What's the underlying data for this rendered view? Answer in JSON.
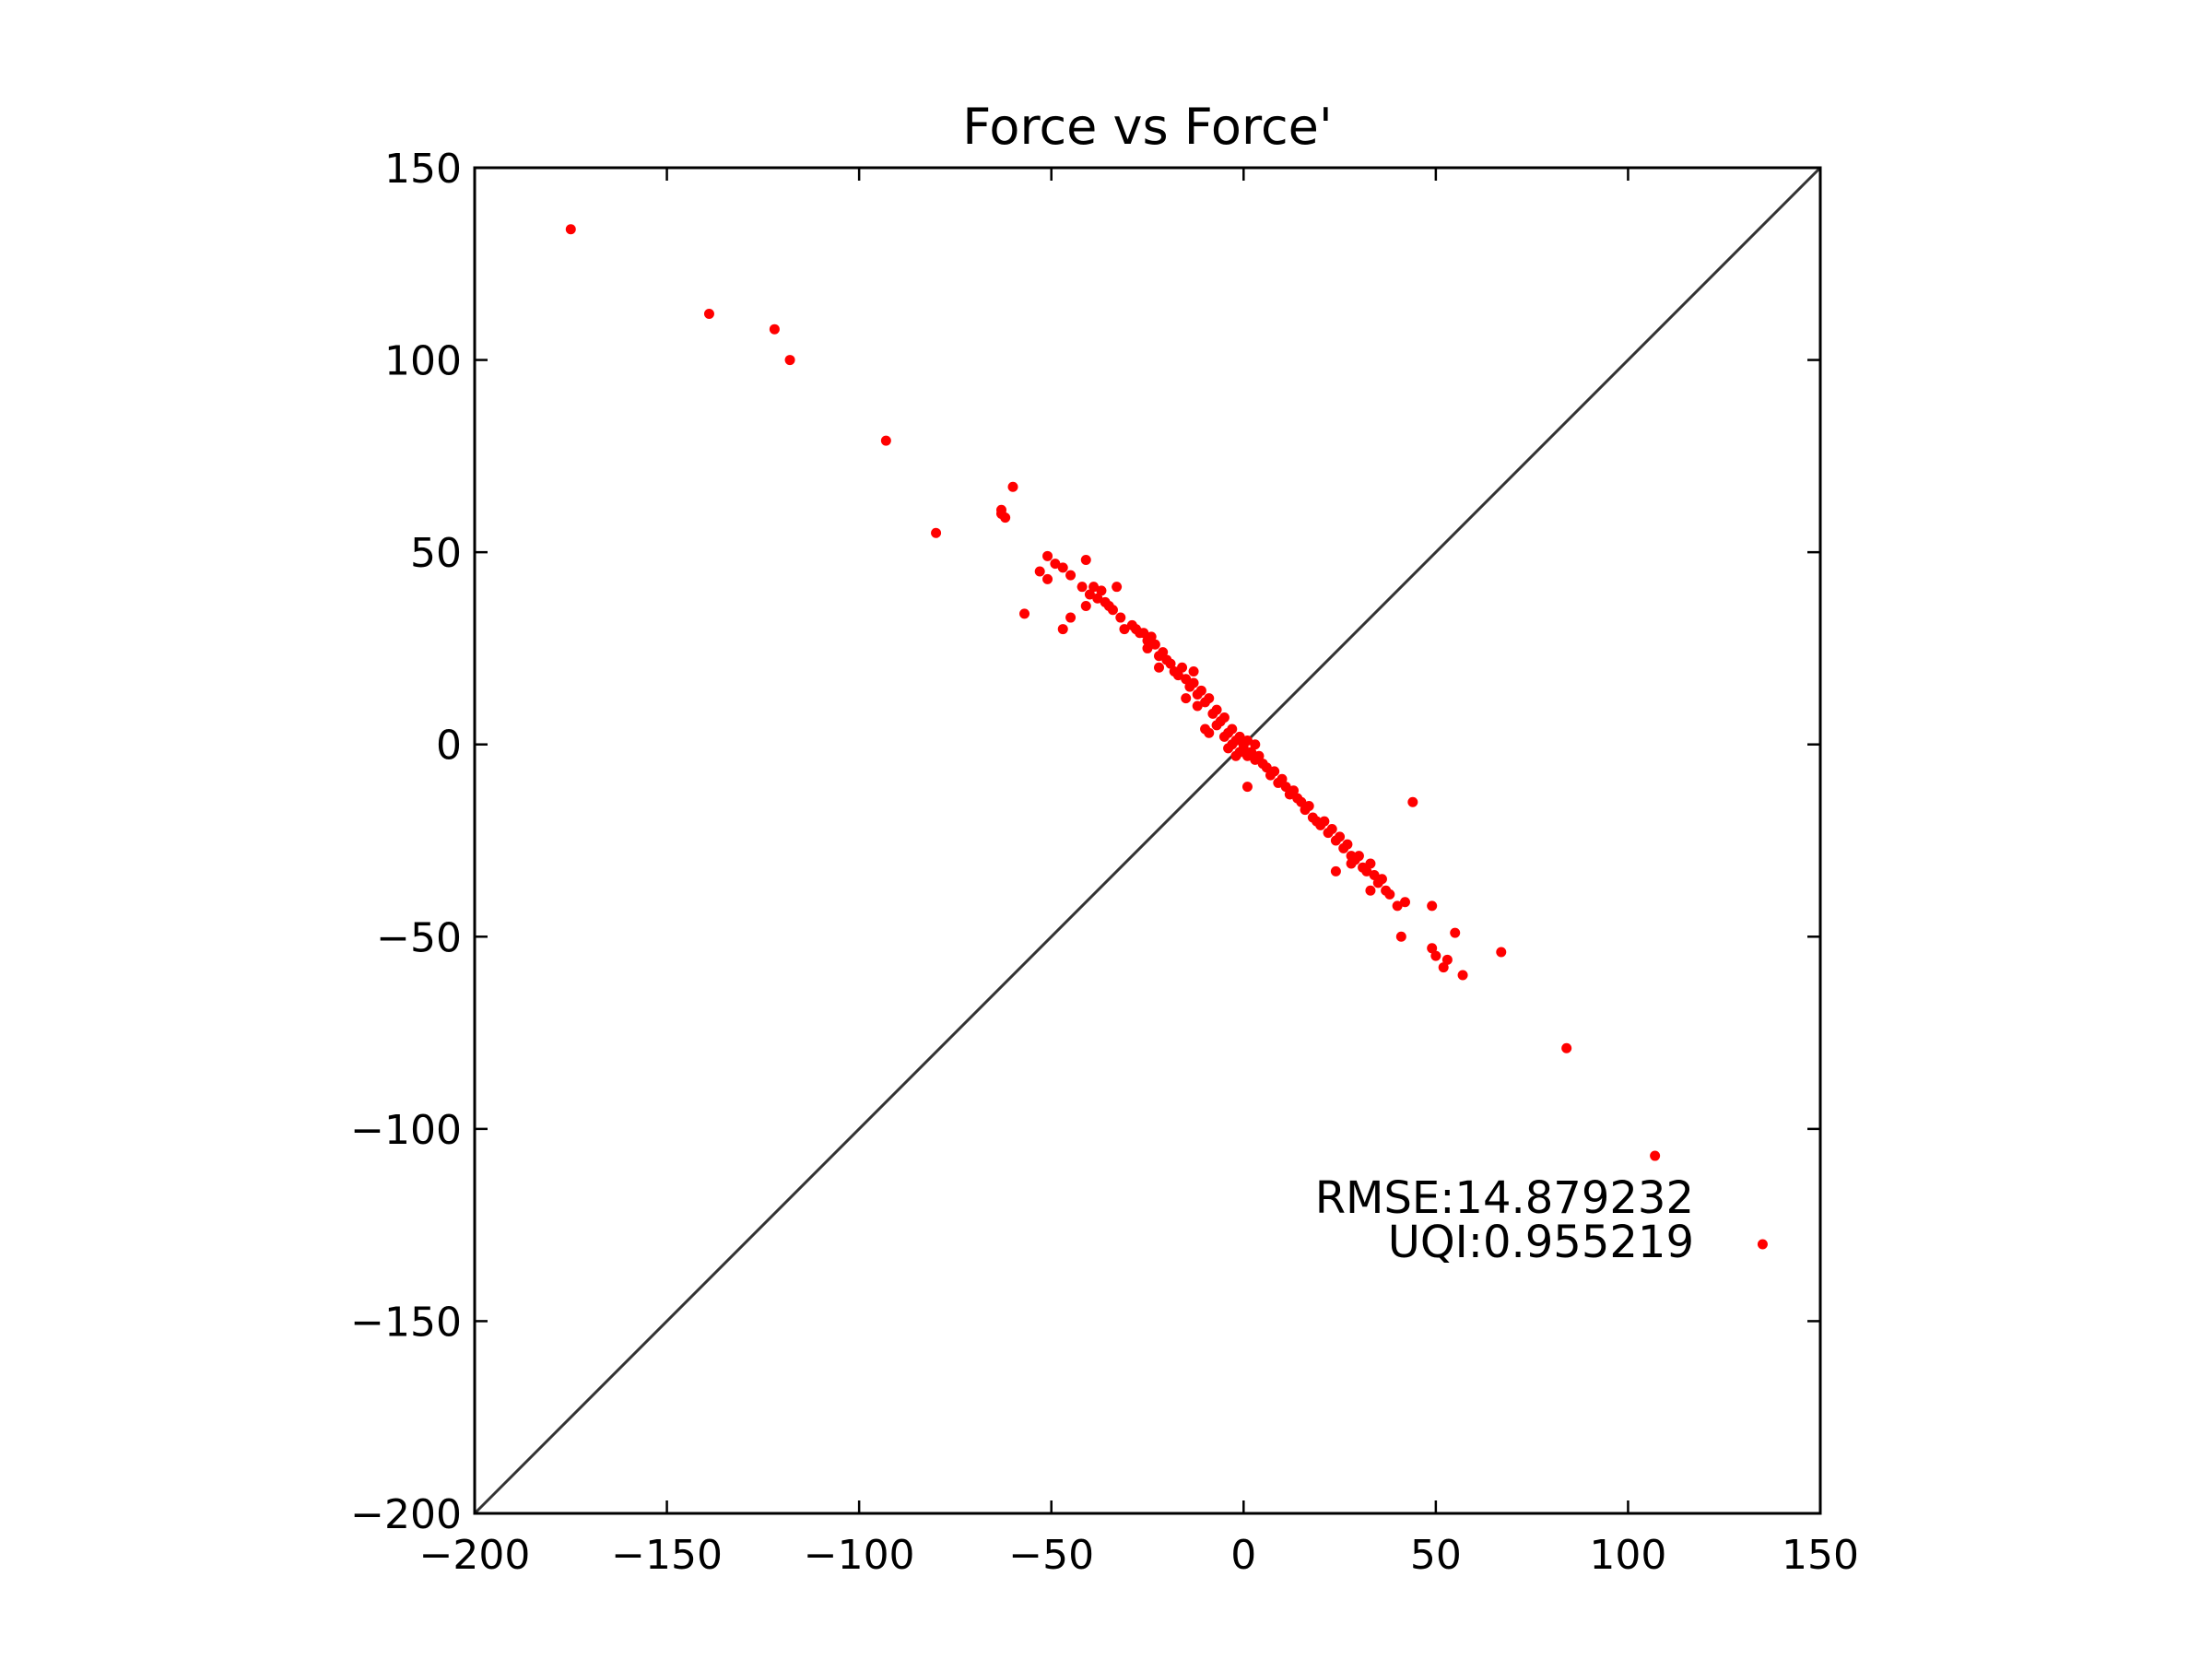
{
  "chart_data": {
    "type": "scatter",
    "title": "Force vs Force'",
    "xlabel": "",
    "ylabel": "",
    "xlim": [
      -200,
      150
    ],
    "ylim": [
      -200,
      150
    ],
    "xticks": [
      -200,
      -150,
      -100,
      -50,
      0,
      50,
      100,
      150
    ],
    "yticks": [
      -200,
      -150,
      -100,
      -50,
      0,
      50,
      100,
      150
    ],
    "xtick_labels": [
      "−200",
      "−150",
      "−100",
      "−50",
      "0",
      "50",
      "100",
      "150"
    ],
    "ytick_labels": [
      "−200",
      "−150",
      "−100",
      "−50",
      "0",
      "50",
      "100",
      "150"
    ],
    "grid": false,
    "reference_line": {
      "from": [
        -200,
        -200
      ],
      "to": [
        150,
        150
      ],
      "color": "#333333"
    },
    "annotations": [
      "RMSE:14.879232",
      "UQI:0.955219"
    ],
    "point_color": "#ff0000",
    "series": [
      {
        "values": [
          [
            -175,
            134
          ],
          [
            -139,
            112
          ],
          [
            -122,
            108
          ],
          [
            -118,
            100
          ],
          [
            -93,
            79
          ],
          [
            -80,
            55
          ],
          [
            -60,
            67
          ],
          [
            -63,
            60
          ],
          [
            -63,
            61
          ],
          [
            -62,
            59
          ],
          [
            -57,
            34
          ],
          [
            -53,
            45
          ],
          [
            -51,
            49
          ],
          [
            -51,
            43
          ],
          [
            -49,
            47
          ],
          [
            -47,
            30
          ],
          [
            -47,
            46
          ],
          [
            -45,
            33
          ],
          [
            -45,
            44
          ],
          [
            -42,
            41
          ],
          [
            -41,
            48
          ],
          [
            -41,
            36
          ],
          [
            -40,
            39
          ],
          [
            -39,
            41
          ],
          [
            -38,
            38
          ],
          [
            -37,
            40
          ],
          [
            -36,
            37
          ],
          [
            -35,
            36
          ],
          [
            -34,
            35
          ],
          [
            -33,
            41
          ],
          [
            -32,
            33
          ],
          [
            -31,
            30
          ],
          [
            -29,
            31
          ],
          [
            -28,
            30
          ],
          [
            -27,
            29
          ],
          [
            -26,
            29
          ],
          [
            -25,
            27
          ],
          [
            -25,
            25
          ],
          [
            -24,
            28
          ],
          [
            -23,
            26
          ],
          [
            -22,
            23
          ],
          [
            -22,
            20
          ],
          [
            -21,
            24
          ],
          [
            -20,
            22
          ],
          [
            -19,
            21
          ],
          [
            -18,
            19
          ],
          [
            -17,
            18
          ],
          [
            -16,
            20
          ],
          [
            -15,
            17
          ],
          [
            -15,
            12
          ],
          [
            -14,
            15
          ],
          [
            -13,
            16
          ],
          [
            -13,
            19
          ],
          [
            -12,
            13
          ],
          [
            -12,
            10
          ],
          [
            -11,
            14
          ],
          [
            -10,
            11
          ],
          [
            -10,
            4
          ],
          [
            -9,
            12
          ],
          [
            -9,
            3
          ],
          [
            -8,
            8
          ],
          [
            -7,
            9
          ],
          [
            -7,
            5
          ],
          [
            -6,
            6
          ],
          [
            -5,
            7
          ],
          [
            -5,
            2
          ],
          [
            -4,
            3
          ],
          [
            -4,
            -1
          ],
          [
            -3,
            4
          ],
          [
            -3,
            0
          ],
          [
            -2,
            1
          ],
          [
            -2,
            -3
          ],
          [
            -1,
            2
          ],
          [
            -1,
            -2
          ],
          [
            0,
            0
          ],
          [
            0,
            -1
          ],
          [
            1,
            1
          ],
          [
            1,
            -3
          ],
          [
            1,
            -11
          ],
          [
            2,
            -2
          ],
          [
            3,
            -4
          ],
          [
            3,
            0
          ],
          [
            4,
            -3
          ],
          [
            5,
            -5
          ],
          [
            6,
            -6
          ],
          [
            7,
            -8
          ],
          [
            8,
            -7
          ],
          [
            9,
            -10
          ],
          [
            10,
            -9
          ],
          [
            11,
            -11
          ],
          [
            12,
            -13
          ],
          [
            13,
            -12
          ],
          [
            14,
            -14
          ],
          [
            15,
            -15
          ],
          [
            16,
            -17
          ],
          [
            17,
            -16
          ],
          [
            18,
            -19
          ],
          [
            19,
            -20
          ],
          [
            20,
            -21
          ],
          [
            21,
            -20
          ],
          [
            22,
            -23
          ],
          [
            23,
            -22
          ],
          [
            24,
            -25
          ],
          [
            25,
            -24
          ],
          [
            26,
            -27
          ],
          [
            27,
            -26
          ],
          [
            28,
            -29
          ],
          [
            28,
            -31
          ],
          [
            29,
            -30
          ],
          [
            30,
            -29
          ],
          [
            31,
            -32
          ],
          [
            32,
            -33
          ],
          [
            33,
            -31
          ],
          [
            34,
            -34
          ],
          [
            35,
            -36
          ],
          [
            36,
            -35
          ],
          [
            37,
            -38
          ],
          [
            38,
            -39
          ],
          [
            40,
            -42
          ],
          [
            42,
            -41
          ],
          [
            44,
            -15
          ],
          [
            24,
            -33
          ],
          [
            33,
            -38
          ],
          [
            41,
            -50
          ],
          [
            49,
            -42
          ],
          [
            49,
            -53
          ],
          [
            50,
            -55
          ],
          [
            52,
            -58
          ],
          [
            53,
            -56
          ],
          [
            55,
            -49
          ],
          [
            57,
            -60
          ],
          [
            67,
            -54
          ],
          [
            84,
            -79
          ],
          [
            107,
            -107
          ],
          [
            135,
            -130
          ]
        ]
      }
    ]
  }
}
